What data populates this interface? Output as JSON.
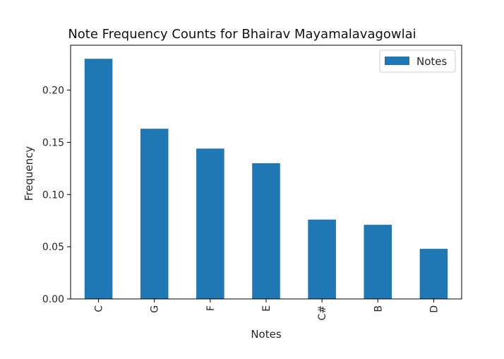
{
  "chart_data": {
    "type": "bar",
    "title": "Note Frequency Counts for Bhairav Mayamalavagowlai",
    "xlabel": "Notes",
    "ylabel": "Frequency",
    "categories": [
      "C",
      "G",
      "F",
      "E",
      "C#",
      "B",
      "D"
    ],
    "series": [
      {
        "name": "Notes",
        "values": [
          0.23,
          0.163,
          0.144,
          0.13,
          0.076,
          0.071,
          0.048
        ]
      }
    ],
    "ylim": [
      0,
      0.243
    ],
    "yticks": [
      0.0,
      0.05,
      0.1,
      0.15,
      0.2
    ],
    "ytick_labels": [
      "0.00",
      "0.05",
      "0.10",
      "0.15",
      "0.20"
    ],
    "bar_color": "#1f77b4",
    "grid": false,
    "legend_position": "top-right",
    "xtick_rotation": "vertical"
  }
}
